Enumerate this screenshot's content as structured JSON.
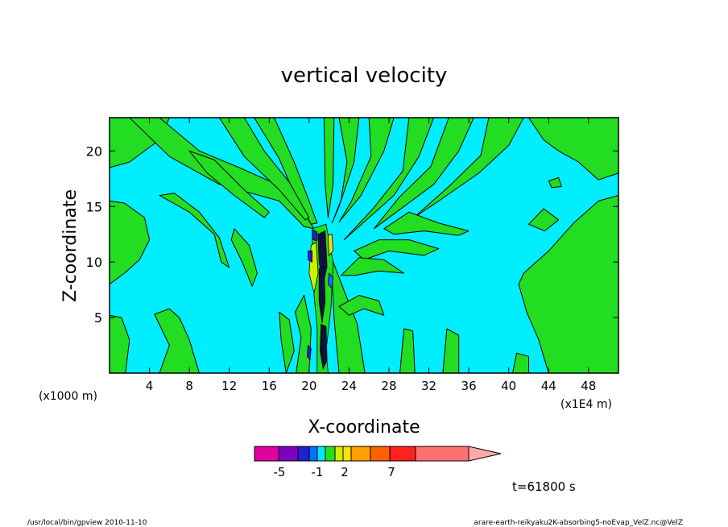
{
  "chart_data": {
    "type": "heatmap",
    "title": "vertical velocity",
    "xlabel": "X-coordinate",
    "ylabel": "Z-coordinate",
    "x_unit_left": "(x1000 m)",
    "x_unit_right": "(x1E4 m)",
    "xlim": [
      0,
      51
    ],
    "ylim": [
      0,
      23
    ],
    "xticks": [
      4,
      8,
      12,
      16,
      20,
      24,
      28,
      32,
      36,
      40,
      44,
      48
    ],
    "yticks": [
      5,
      10,
      15,
      20
    ],
    "background_color": "#00eeff",
    "positive_color": "#22dd22",
    "contour_color": "#000000",
    "updraft_center_x": 21.3,
    "colorbar": {
      "tick_labels": [
        "-5",
        "-1",
        "2",
        "7"
      ],
      "colors": [
        "#e000a0",
        "#8000c0",
        "#2020d0",
        "#0070ff",
        "#00e8ff",
        "#20e020",
        "#d0f000",
        "#ffe000",
        "#ffa000",
        "#ff6000",
        "#ff2020",
        "#ff7070",
        "#ffaaaa"
      ]
    }
  },
  "footer": {
    "time": "t=61800 s",
    "left": "/usr/local/bin/gpview   2010-11-10",
    "right": "arare-earth-reikyaku2K-absorbing5-noEvap_VelZ.nc@VelZ"
  }
}
